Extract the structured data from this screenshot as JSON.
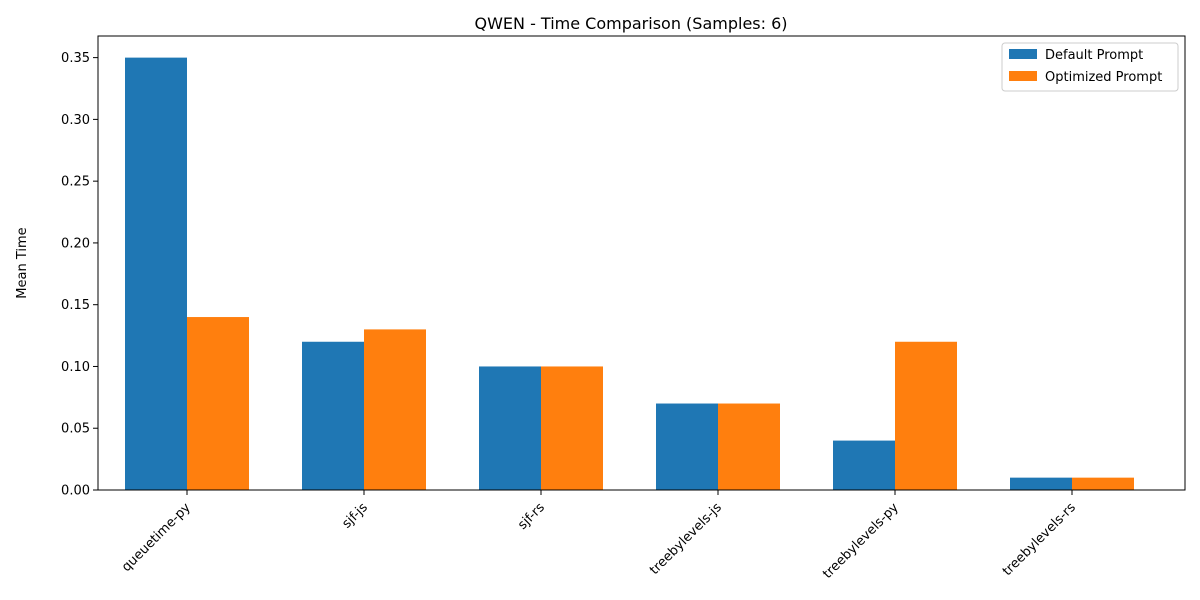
{
  "chart_data": {
    "type": "bar",
    "title": "QWEN - Time Comparison (Samples: 6)",
    "xlabel": "",
    "ylabel": "Mean Time",
    "categories": [
      "queuetime-py",
      "sjf-js",
      "sjf-rs",
      "treebylevels-js",
      "treebylevels-py",
      "treebylevels-rs"
    ],
    "series": [
      {
        "name": "Default Prompt",
        "values": [
          0.35,
          0.12,
          0.1,
          0.07,
          0.04,
          0.01
        ],
        "color": "#1f77b4"
      },
      {
        "name": "Optimized Prompt",
        "values": [
          0.14,
          0.13,
          0.1,
          0.07,
          0.12,
          0.01
        ],
        "color": "#ff7f0e"
      }
    ],
    "ylim": [
      0,
      0.3675
    ],
    "yticks": [
      "0.00",
      "0.05",
      "0.10",
      "0.15",
      "0.20",
      "0.25",
      "0.30",
      "0.35"
    ],
    "legend_position": "top-right",
    "grid": false
  }
}
